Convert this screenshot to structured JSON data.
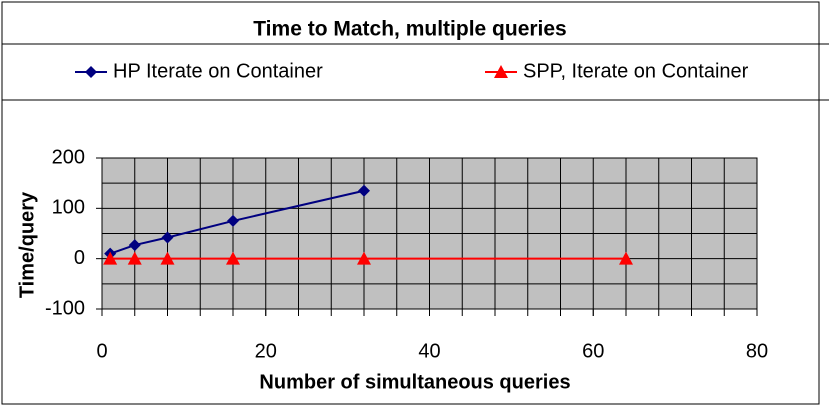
{
  "chart_data": {
    "type": "line",
    "title": "Time to Match, multiple queries",
    "xlabel": "Number of simultaneous queries",
    "ylabel": "Time/query",
    "xlim": [
      0,
      80
    ],
    "xticks": [
      0,
      20,
      40,
      60,
      80
    ],
    "ylim": [
      -100,
      200
    ],
    "yticks": [
      -100,
      0,
      100,
      200
    ],
    "xgrid": [
      4,
      8,
      12,
      16,
      20,
      24,
      28,
      32,
      36,
      40,
      44,
      48,
      52,
      56,
      60,
      64,
      68,
      72,
      76
    ],
    "ygrid": [
      -50,
      0,
      50,
      100,
      150
    ],
    "grid": true,
    "plot_background": "#c0c0c0",
    "series": [
      {
        "name": "HP Iterate on Container",
        "color": "#000080",
        "marker": "diamond",
        "x": [
          1,
          4,
          8,
          16,
          32
        ],
        "values": [
          10,
          27,
          42,
          75,
          135
        ]
      },
      {
        "name": "SPP, Iterate on Container",
        "color": "#ff0000",
        "marker": "triangle",
        "x": [
          1,
          4,
          8,
          16,
          32,
          64
        ],
        "values": [
          0,
          0,
          0,
          0,
          0,
          0
        ]
      }
    ]
  }
}
